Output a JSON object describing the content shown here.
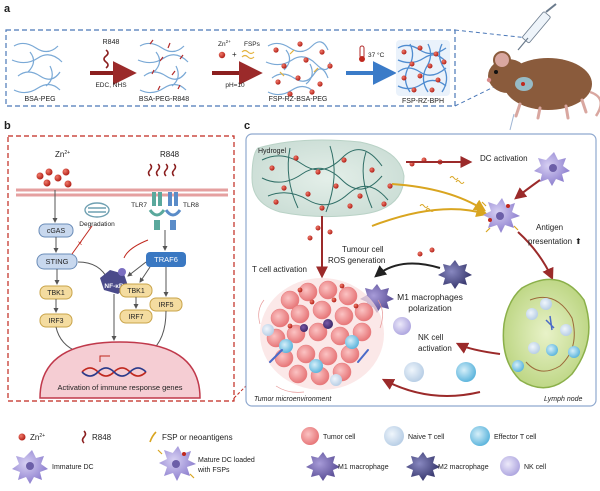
{
  "panel_a": {
    "letter": "a",
    "bsa_peg": "BSA-PEG",
    "r848": "R848",
    "edc_nhs": "EDC, NHS",
    "bsa_peg_r848": "BSA-PEG-R848",
    "zn": "Zn",
    "zn_sup": "2+",
    "plus": "+",
    "fsps": "FSPs",
    "ph": "pH=10",
    "fsp_rz_bsa_peg": "FSP-RZ-BSA-PEG",
    "temp": "37 °C",
    "fsp_rz_bph": "FSP-RZ-BPH"
  },
  "panel_b": {
    "letter": "b",
    "zn": "Zn",
    "zn_sup": "2+",
    "r848": "R848",
    "degradation": "Degradation",
    "cgas": "cGAS",
    "sting": "STING",
    "tbk1_left": "TBK1",
    "irf3": "IRF3",
    "nfkb": "NF-κB",
    "tlr7": "TLR7",
    "tlr8": "TLR8",
    "traf6": "TRAF6",
    "tbk1_right": "TBK1",
    "irf5": "IRF5",
    "irf7": "IRF7",
    "activation": "Activation of immune response genes"
  },
  "panel_c": {
    "letter": "c",
    "hydrogel": "Hydrogel",
    "dc_activation": "DC activation",
    "antigen_line1": "Antigen",
    "antigen_line2": "presentation",
    "up_arrow": "⬆",
    "tumour_line1": "Tumour cell",
    "tumour_line2": "ROS generation",
    "t_cell_activation": "T cell activation",
    "m1_line1": "M1 macrophages",
    "m1_line2": "polarization",
    "nk_line1": "NK cell",
    "nk_line2": "activation",
    "tumor_micro": "Tumor microenvironment",
    "lymph_node": "Lymph node"
  },
  "legend": {
    "zn": "Zn",
    "zn_sup": "2+",
    "r848": "R848",
    "fsp": "FSP or neoantigens",
    "tumor_cell": "Tumor cell",
    "naive_t": "Naive T cell",
    "effector_t": "Effector T cell",
    "immature_dc": "Immature DC",
    "mature_dc_line1": "Mature DC loaded",
    "mature_dc_line2": "with FSPs",
    "m1": "M1 macrophage",
    "m2": "M2 macrophage",
    "nk": "NK cell"
  },
  "colors": {
    "zn": "#c0281e",
    "tumor": "#f08a8a",
    "naive_t": "#d4e3f3",
    "effector_t": "#8ccce8",
    "dc": "#9b8fd6",
    "m1": "#6c5fa8",
    "m2": "#4a4a8a",
    "nk": "#c9c3ec",
    "accent_red": "#c0281e",
    "panel_blue": "#4b78b8"
  }
}
